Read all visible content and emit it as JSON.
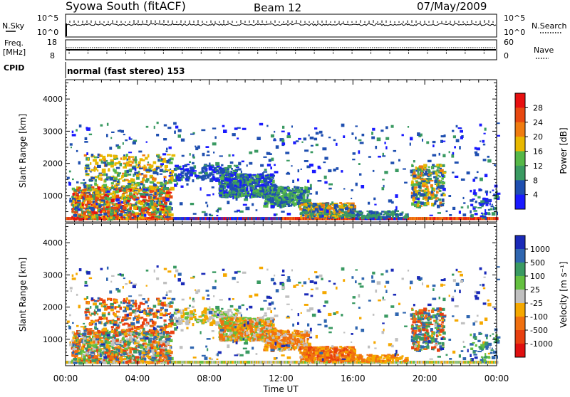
{
  "header": {
    "title": "Syowa South (fitACF)",
    "beam": "Beam 12",
    "date": "07/May/2009"
  },
  "strips": {
    "nsky_label": "N.Sky",
    "nsearch_label": "N.Search",
    "nsky_ticks": [
      "10^5",
      "10^0"
    ],
    "nsearch_ticks": [
      "10^5",
      "10^0"
    ],
    "freq_label_1": "Freq.",
    "freq_label_2": "[MHz]",
    "freq_ticks": [
      "18",
      "8"
    ],
    "nave_label": "Nave",
    "nave_ticks": [
      "60",
      "0"
    ],
    "cpid_label": "CPID",
    "cpid_text": "normal (fast stereo) 153"
  },
  "chart_data": [
    {
      "type": "heatmap",
      "name": "power",
      "ylabel": "Slant Range [km]",
      "ylim": [
        180,
        4600
      ],
      "yticks": [
        "1000",
        "2000",
        "3000",
        "4000"
      ],
      "colorbar_label": "Power [dB]",
      "colorbar_ticks": [
        "4",
        "8",
        "12",
        "16",
        "20",
        "24",
        "28"
      ],
      "colors": [
        "#1a1aff",
        "#1f4fb0",
        "#3a9a62",
        "#56b848",
        "#e8b800",
        "#f07c10",
        "#e84810",
        "#e81010"
      ],
      "echo_regions": [
        {
          "t": [
            0.5,
            5.8
          ],
          "r": [
            300,
            2300
          ],
          "level": 4
        },
        {
          "t": [
            6.0,
            11.5
          ],
          "r": [
            900,
            1700
          ],
          "level": 1
        },
        {
          "t": [
            10.0,
            16.5
          ],
          "r": [
            500,
            1300
          ],
          "level": 2
        },
        {
          "t": [
            19.5,
            21.5
          ],
          "r": [
            600,
            2000
          ],
          "level": 3
        }
      ]
    },
    {
      "type": "heatmap",
      "name": "velocity",
      "ylabel": "Slant Range [km]",
      "ylim": [
        180,
        4600
      ],
      "yticks": [
        "1000",
        "2000",
        "3000",
        "4000"
      ],
      "xlabel": "Time UT",
      "xticks": [
        "00:00",
        "04:00",
        "08:00",
        "12:00",
        "16:00",
        "20:00",
        "00:00"
      ],
      "xlim": [
        0,
        24
      ],
      "colorbar_label": "Velocity [m s⁻¹]",
      "colorbar_ticks": [
        "1000",
        "500",
        "100",
        "25",
        "-25",
        "-100",
        "-500",
        "-1000"
      ],
      "colors": [
        "#1a2ab8",
        "#2f66b0",
        "#3a9a62",
        "#64c040",
        "#c0c0c0",
        "#f5a800",
        "#f07010",
        "#e84010",
        "#e01010"
      ]
    }
  ]
}
